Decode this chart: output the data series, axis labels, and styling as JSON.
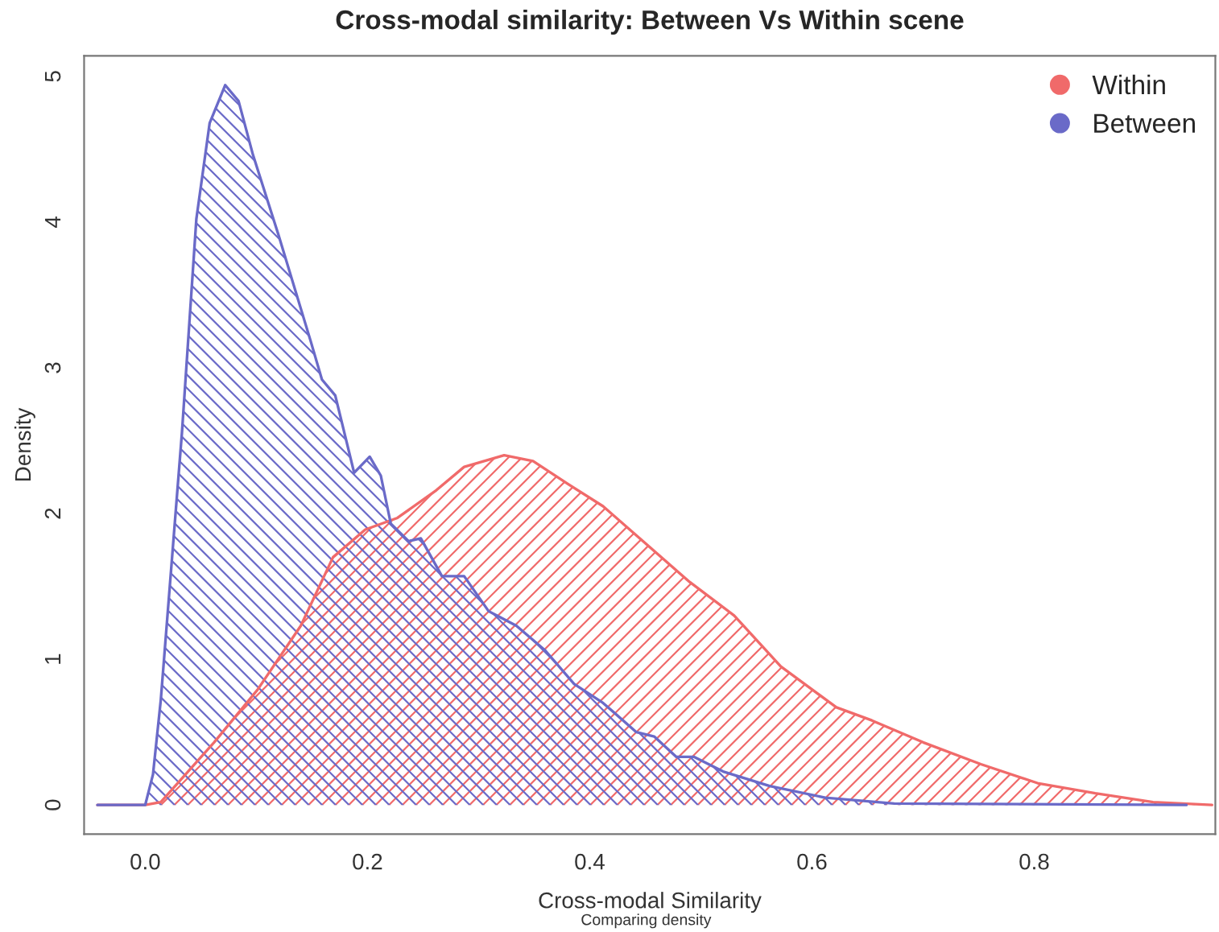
{
  "chart_data": {
    "type": "area",
    "title": "Cross-modal similarity: Between Vs Within scene",
    "xlabel": "Cross-modal Similarity",
    "ylabel": "Density",
    "annotations": [
      "Comparing density"
    ],
    "series": [
      {
        "name": "Within",
        "color": "#f06a6a",
        "x": [
          -0.043,
          0.0,
          0.014,
          0.062,
          0.101,
          0.14,
          0.169,
          0.198,
          0.227,
          0.262,
          0.287,
          0.323,
          0.349,
          0.381,
          0.412,
          0.448,
          0.49,
          0.53,
          0.572,
          0.622,
          0.654,
          0.7,
          0.752,
          0.803,
          0.855,
          0.907,
          0.96
        ],
        "values": [
          0,
          0,
          0.02,
          0.43,
          0.79,
          1.23,
          1.7,
          1.89,
          1.97,
          2.16,
          2.32,
          2.4,
          2.36,
          2.2,
          2.05,
          1.81,
          1.53,
          1.3,
          0.95,
          0.67,
          0.58,
          0.43,
          0.28,
          0.15,
          0.08,
          0.02,
          0
        ]
      },
      {
        "name": "Between",
        "color": "#6a6ac8",
        "x": [
          -0.043,
          0.0,
          0.007,
          0.014,
          0.033,
          0.046,
          0.058,
          0.072,
          0.084,
          0.097,
          0.12,
          0.149,
          0.159,
          0.171,
          0.188,
          0.202,
          0.212,
          0.221,
          0.237,
          0.248,
          0.267,
          0.287,
          0.309,
          0.334,
          0.36,
          0.386,
          0.412,
          0.442,
          0.458,
          0.478,
          0.494,
          0.52,
          0.562,
          0.612,
          0.674,
          0.937
        ],
        "values": [
          0,
          0,
          0.21,
          0.72,
          2.55,
          4.02,
          4.68,
          4.94,
          4.83,
          4.46,
          3.91,
          3.18,
          2.92,
          2.81,
          2.28,
          2.39,
          2.26,
          1.93,
          1.81,
          1.83,
          1.57,
          1.57,
          1.33,
          1.23,
          1.06,
          0.83,
          0.7,
          0.5,
          0.47,
          0.33,
          0.33,
          0.23,
          0.13,
          0.05,
          0.01,
          0
        ]
      }
    ],
    "xlim": [
      -0.055,
      0.963
    ],
    "xticks": [
      {
        "value": 0,
        "label": "0.0"
      },
      {
        "value": 0.2,
        "label": "0.2"
      },
      {
        "value": 0.4,
        "label": "0.4"
      },
      {
        "value": 0.6,
        "label": "0.6"
      },
      {
        "value": 0.8,
        "label": "0.8"
      }
    ],
    "ylim": [
      -0.2,
      5.14
    ],
    "yticks": [
      0,
      1,
      2,
      3,
      4,
      5
    ],
    "grid": false,
    "legend": "top right"
  }
}
